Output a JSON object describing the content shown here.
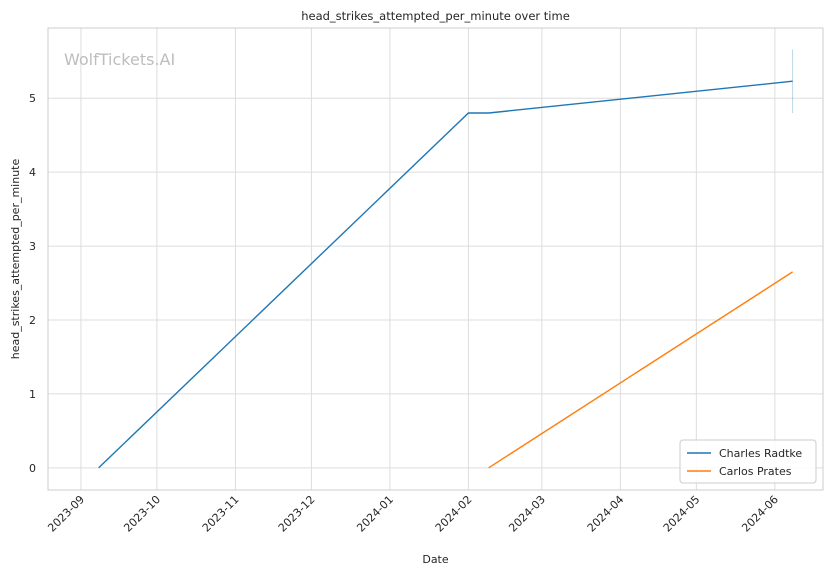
{
  "chart_data": {
    "type": "line",
    "title": "head_strikes_attempted_per_minute over time",
    "xlabel": "Date",
    "ylabel": "head_strikes_attempted_per_minute",
    "watermark": "WolfTickets.AI",
    "x_axis_type": "date",
    "xlim": [
      "2023-08-19",
      "2024-06-20"
    ],
    "ylim": [
      -0.3,
      5.95
    ],
    "x_ticks": [
      "2023-09-01",
      "2023-10-01",
      "2023-11-01",
      "2023-12-01",
      "2024-01-01",
      "2024-02-01",
      "2024-03-01",
      "2024-04-01",
      "2024-05-01",
      "2024-06-01"
    ],
    "x_tick_labels": [
      "2023-09",
      "2023-10",
      "2023-11",
      "2023-12",
      "2024-01",
      "2024-02",
      "2024-03",
      "2024-04",
      "2024-05",
      "2024-06"
    ],
    "y_ticks": [
      0,
      1,
      2,
      3,
      4,
      5
    ],
    "grid": true,
    "legend_position": "bottom-right",
    "series": [
      {
        "name": "Charles Radtke",
        "color": "#1f77b4",
        "points": [
          {
            "x": "2023-09-08",
            "y": 0
          },
          {
            "x": "2024-02-01",
            "y": 4.8
          },
          {
            "x": "2024-02-09",
            "y": 4.8
          },
          {
            "x": "2024-06-08",
            "y": 5.23
          }
        ],
        "error_bar": {
          "x": "2024-06-08",
          "low": 4.8,
          "high": 5.66
        }
      },
      {
        "name": "Carlos Prates",
        "color": "#ff7f0e",
        "points": [
          {
            "x": "2024-02-09",
            "y": 0
          },
          {
            "x": "2024-06-08",
            "y": 2.65
          }
        ]
      }
    ]
  }
}
